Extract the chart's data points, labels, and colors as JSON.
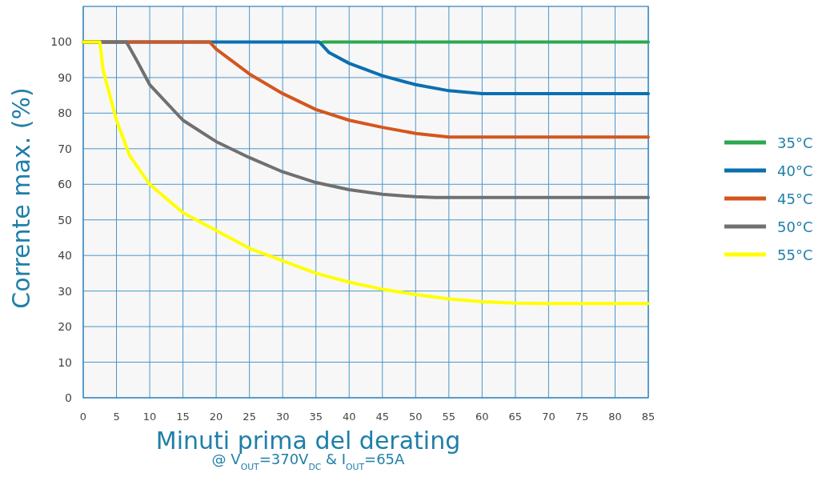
{
  "chart_data": {
    "type": "line",
    "xlabel": "Minuti prima del derating",
    "ylabel": "Corrente max. (%)",
    "annotations": [
      "@ V$_{OUT}$=370V$_{DC}$ & I$_{OUT}$=65A"
    ],
    "xlim": [
      0,
      85
    ],
    "xticks": [
      0,
      5,
      10,
      15,
      20,
      25,
      30,
      35,
      40,
      45,
      50,
      55,
      60,
      65,
      70,
      75,
      80,
      85
    ],
    "ylim": [
      0,
      110
    ],
    "yticks": [
      0,
      10,
      20,
      30,
      40,
      50,
      60,
      70,
      80,
      90,
      100
    ],
    "grid": true,
    "legend": "right",
    "marker": "none",
    "line_style": "solid",
    "series": [
      {
        "name": "35°C",
        "color": "#2ca84f",
        "x": [
          36,
          85
        ],
        "values": [
          100,
          100
        ]
      },
      {
        "name": "40°C",
        "color": "#0b6fb0",
        "x": [
          0,
          35.5,
          37,
          40,
          45,
          50,
          55,
          60,
          85
        ],
        "values": [
          100,
          100,
          97,
          94,
          90.5,
          88,
          86.3,
          85.5,
          85.5
        ]
      },
      {
        "name": "45°C",
        "color": "#d4561e",
        "x": [
          0,
          19,
          20,
          25,
          30,
          35,
          40,
          45,
          50,
          55,
          85
        ],
        "values": [
          100,
          100,
          98,
          91,
          85.5,
          81,
          78,
          76,
          74.3,
          73.3,
          73.3
        ]
      },
      {
        "name": "50°C",
        "color": "#707070",
        "x": [
          0,
          6.5,
          8,
          10,
          15,
          20,
          25,
          30,
          35,
          40,
          45,
          50,
          53,
          85
        ],
        "values": [
          100,
          100,
          95,
          88,
          78,
          72,
          67.5,
          63.5,
          60.5,
          58.5,
          57.2,
          56.5,
          56.3,
          56.3
        ]
      },
      {
        "name": "55°C",
        "color": "#ffff00",
        "x": [
          0,
          2.5,
          3,
          4,
          5,
          7,
          10,
          15,
          20,
          25,
          30,
          35,
          40,
          45,
          50,
          55,
          60,
          65,
          70,
          85
        ],
        "values": [
          100,
          100,
          92,
          85,
          78,
          68,
          60,
          52,
          47,
          42,
          38.5,
          35,
          32.5,
          30.5,
          29,
          27.8,
          27,
          26.6,
          26.5,
          26.5
        ]
      }
    ]
  }
}
